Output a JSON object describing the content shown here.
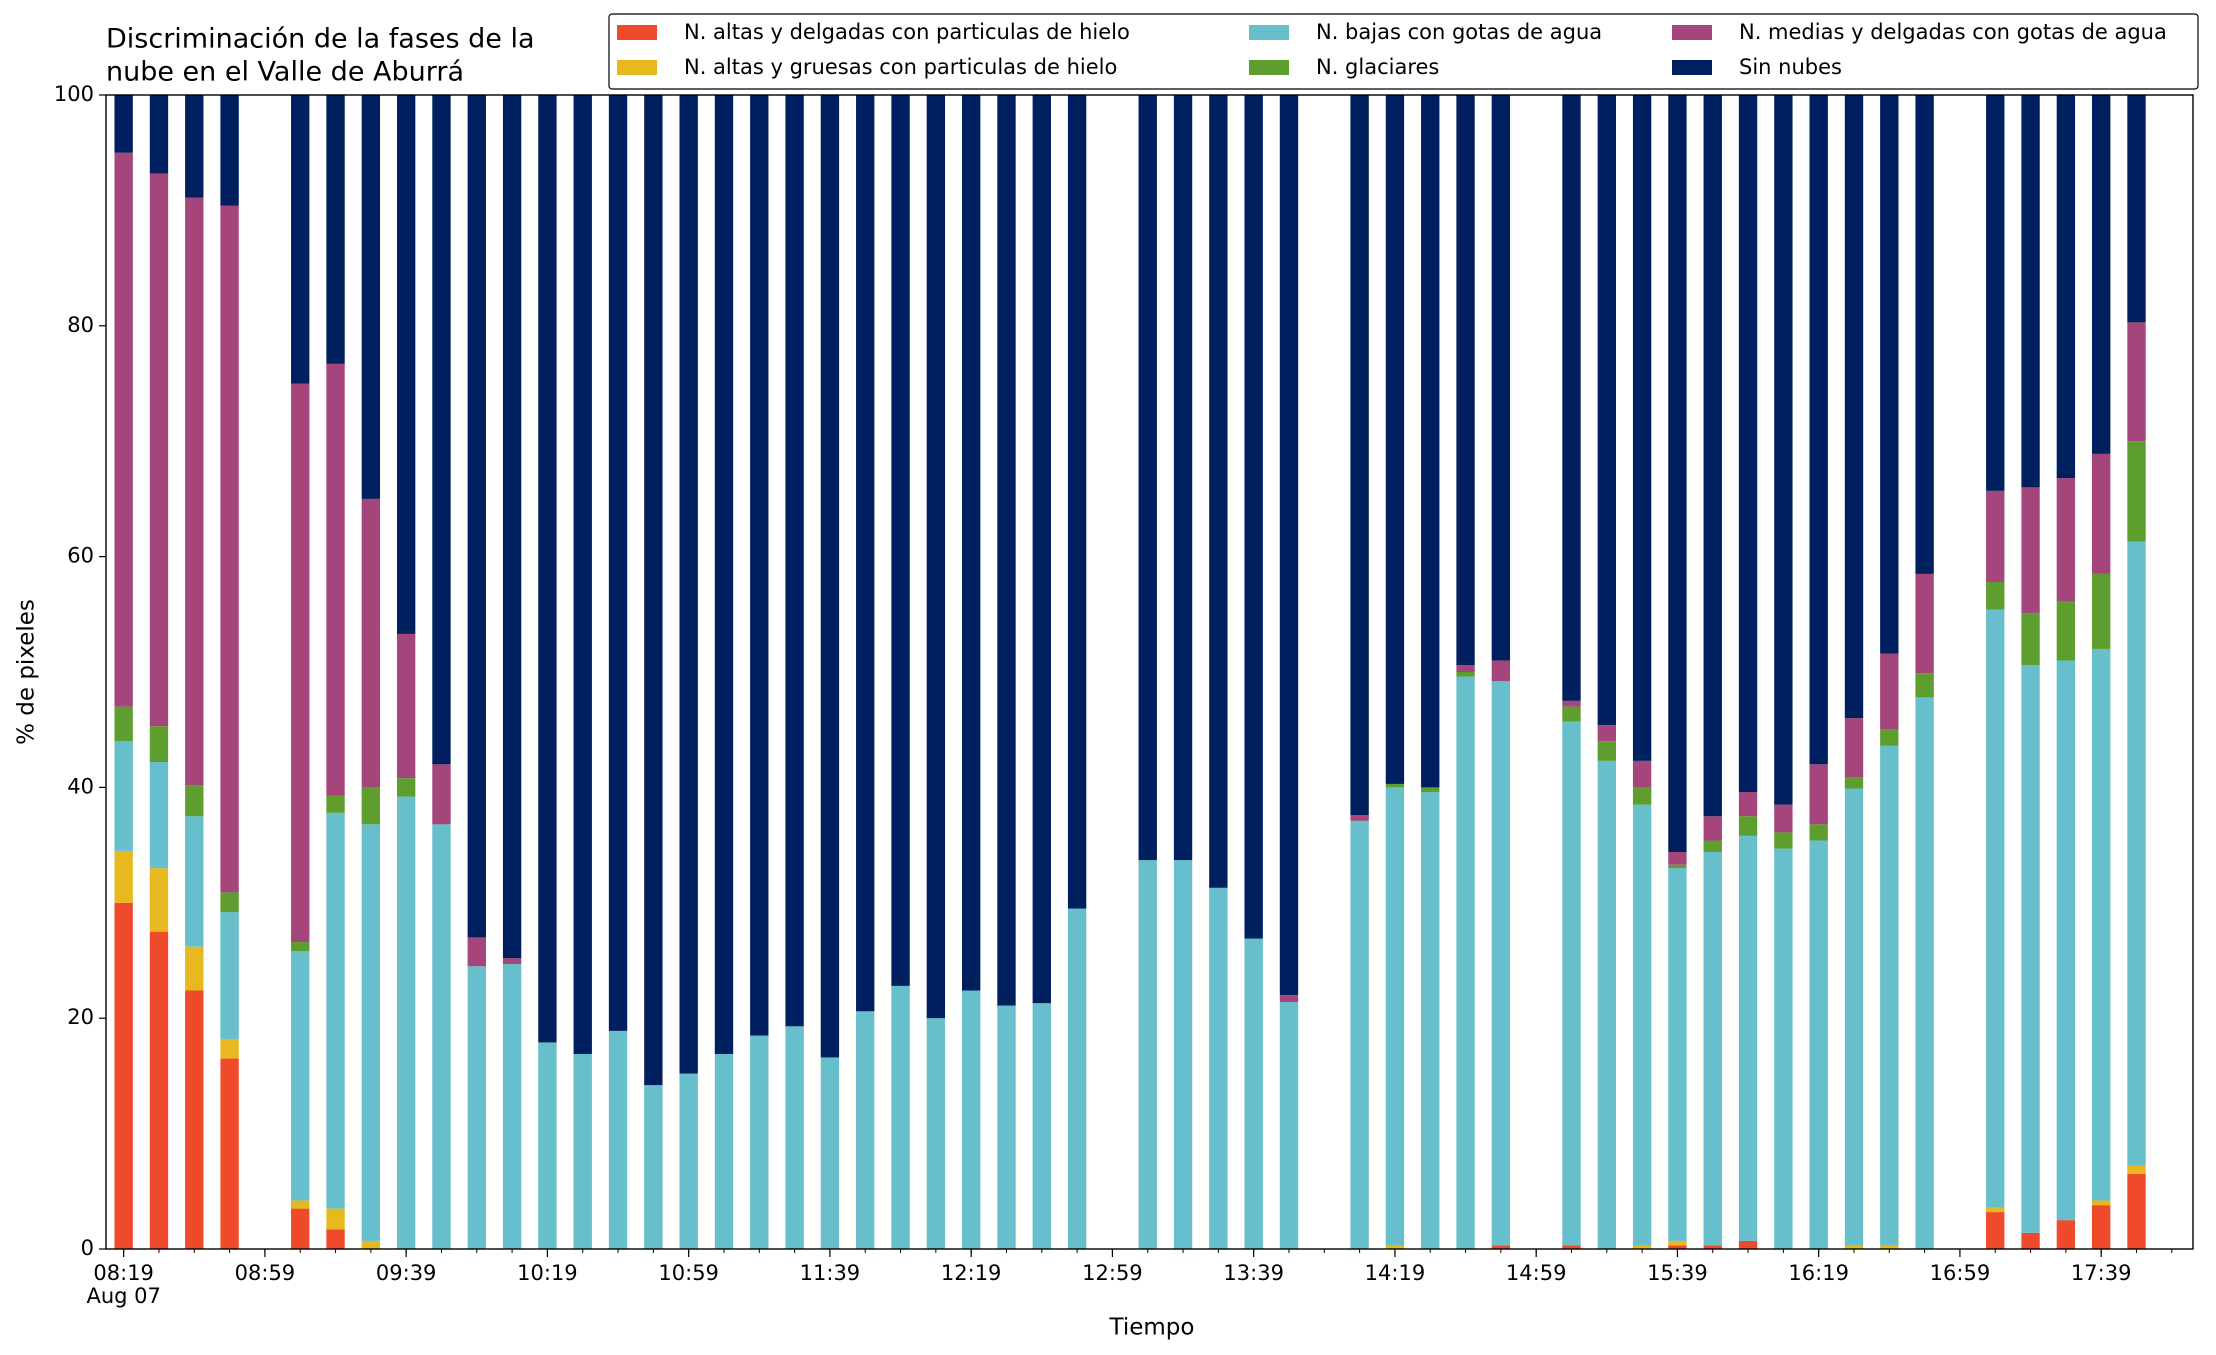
{
  "chart_data": {
    "type": "stacked_bar",
    "title": [
      "Discriminación de la fases de la",
      "nube en el Valle de Aburrá"
    ],
    "xlabel": "Tiempo",
    "ylabel": "% de pixeles",
    "x": [
      "08:19",
      "08:29",
      "08:39",
      "08:49",
      "09:09",
      "09:19",
      "09:29",
      "09:39",
      "09:49",
      "09:59",
      "10:09",
      "10:19",
      "10:29",
      "10:39",
      "10:49",
      "10:59",
      "11:09",
      "11:19",
      "11:29",
      "11:39",
      "11:49",
      "11:59",
      "12:09",
      "12:19",
      "12:29",
      "12:39",
      "12:49",
      "13:09",
      "13:19",
      "13:29",
      "13:39",
      "13:49",
      "14:09",
      "14:19",
      "14:29",
      "14:39",
      "14:49",
      "15:09",
      "15:19",
      "15:29",
      "15:39",
      "15:49",
      "15:59",
      "16:09",
      "16:19",
      "16:29",
      "16:39",
      "16:49",
      "17:09",
      "17:19",
      "17:29",
      "17:39",
      "17:49"
    ],
    "xlim": [
      "08:14",
      "18:05"
    ],
    "xticks": [
      "08:19",
      "08:59",
      "09:39",
      "10:19",
      "10:59",
      "11:39",
      "12:19",
      "12:59",
      "13:39",
      "14:19",
      "14:59",
      "15:39",
      "16:19",
      "16:59",
      "17:39"
    ],
    "xtick_date": "Aug 07",
    "ylim": [
      0,
      100
    ],
    "yticks": [
      0,
      20,
      40,
      60,
      80,
      100
    ],
    "legend": "top-right",
    "series": [
      {
        "name": "N. altas y delgadas con particulas de hielo",
        "color": "#ee4a2b",
        "values": [
          30,
          27.5,
          22.4,
          16.5,
          3.5,
          1.7,
          0,
          0,
          0,
          0,
          0,
          0,
          0,
          0,
          0,
          0,
          0,
          0,
          0,
          0,
          0,
          0,
          0,
          0,
          0,
          0,
          0,
          0,
          0,
          0,
          0,
          0,
          0,
          0,
          0,
          0,
          0.3,
          0.3,
          0,
          0,
          0.3,
          0.3,
          0.7,
          0,
          0,
          0,
          0,
          0,
          3.2,
          1.4,
          2.5,
          3.8,
          6.5
        ]
      },
      {
        "name": "N. altas y gruesas con particulas de hielo",
        "color": "#e7b81f",
        "values": [
          4.5,
          5.5,
          3.8,
          1.7,
          0.7,
          1.8,
          0.7,
          0,
          0,
          0,
          0,
          0,
          0,
          0,
          0,
          0,
          0,
          0,
          0,
          0,
          0,
          0,
          0,
          0,
          0,
          0,
          0,
          0,
          0,
          0,
          0,
          0,
          0,
          0.3,
          0,
          0,
          0,
          0,
          0,
          0.3,
          0.4,
          0,
          0,
          0,
          0,
          0.3,
          0.3,
          0,
          0.4,
          0,
          0,
          0.4,
          0.7
        ]
      },
      {
        "name": "N. bajas con gotas de agua",
        "color": "#66bfcb",
        "values": [
          9.5,
          9.2,
          11.3,
          11,
          21.6,
          34.3,
          36.1,
          39.2,
          36.8,
          24.5,
          24.7,
          17.9,
          16.9,
          18.9,
          14.2,
          15.2,
          16.9,
          18.5,
          19.3,
          16.6,
          20.6,
          22.8,
          20,
          22.4,
          21.1,
          21.3,
          29.5,
          33.7,
          33.7,
          31.3,
          26.9,
          21.4,
          37.1,
          39.7,
          39.6,
          49.6,
          48.9,
          45.4,
          42.3,
          38.2,
          32.3,
          34.1,
          35.1,
          34.7,
          35.4,
          39.6,
          43.3,
          47.8,
          51.8,
          49.2,
          48.5,
          47.8,
          54.1
        ]
      },
      {
        "name": "N. glaciares",
        "color": "#5d9e2f",
        "values": [
          3,
          3.1,
          2.7,
          1.7,
          0.8,
          1.5,
          3.2,
          1.6,
          0,
          0,
          0,
          0,
          0,
          0,
          0,
          0,
          0,
          0,
          0,
          0,
          0,
          0,
          0,
          0,
          0,
          0,
          0,
          0,
          0,
          0,
          0,
          0,
          0,
          0.3,
          0.4,
          0.4,
          0,
          1.3,
          1.7,
          1.5,
          0.3,
          1,
          1.7,
          1.4,
          1.4,
          1,
          1.4,
          2.1,
          2.4,
          4.5,
          5.1,
          6.5,
          8.7
        ]
      },
      {
        "name": "N. medias y delgadas con gotas de agua",
        "color": "#a4467b",
        "values": [
          48,
          47.9,
          50.9,
          59.5,
          48.4,
          37.4,
          25,
          12.5,
          5.2,
          2.5,
          0.5,
          0,
          0,
          0,
          0,
          0,
          0,
          0,
          0,
          0,
          0,
          0,
          0,
          0,
          0,
          0,
          0,
          0,
          0,
          0,
          0,
          0.6,
          0.5,
          0,
          0,
          0.6,
          1.8,
          0.5,
          1.4,
          2.3,
          1.1,
          2.1,
          2.1,
          2.4,
          5.2,
          5.1,
          6.6,
          8.6,
          7.9,
          10.9,
          10.7,
          10.4,
          10.3
        ]
      },
      {
        "name": "Sin nubes",
        "color": "#001f5e",
        "values": [
          5,
          6.8,
          8.9,
          9.6,
          25,
          23.3,
          35,
          46.7,
          58,
          73,
          74.8,
          82.1,
          83.1,
          81.1,
          85.8,
          84.8,
          83.1,
          81.5,
          80.7,
          83.4,
          79.4,
          77.2,
          80,
          77.6,
          78.9,
          78.7,
          70.5,
          66.3,
          66.3,
          68.7,
          73.1,
          78,
          62.4,
          59.7,
          60,
          49.4,
          49,
          52.5,
          54.6,
          57.7,
          65.6,
          62.5,
          60.4,
          61.5,
          58,
          54,
          48.4,
          41.5,
          34.3,
          34,
          33.2,
          31.1,
          19.7
        ]
      }
    ]
  }
}
